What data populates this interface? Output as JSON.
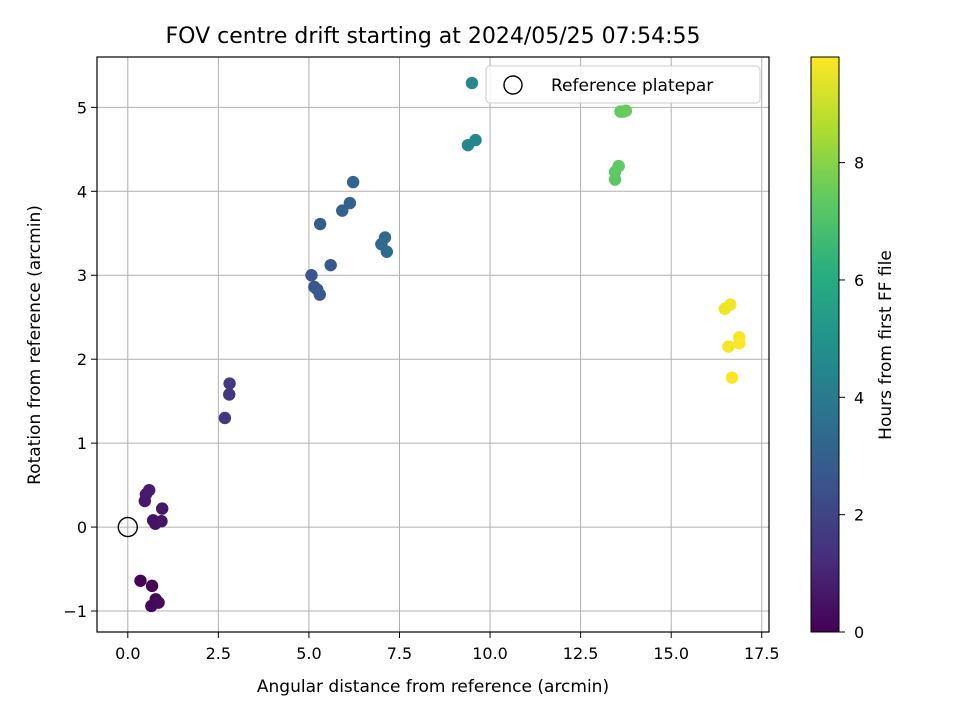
{
  "chart_data": {
    "type": "scatter",
    "title": "FOV centre drift starting at 2024/05/25 07:54:55",
    "xlabel": "Angular distance from reference (arcmin)",
    "ylabel": "Rotation from reference (arcmin)",
    "xlim": [
      -0.85,
      17.7
    ],
    "ylim": [
      -1.25,
      5.6
    ],
    "xticks": [
      0.0,
      2.5,
      5.0,
      7.5,
      10.0,
      12.5,
      15.0,
      17.5
    ],
    "xtick_labels": [
      "0.0",
      "2.5",
      "5.0",
      "7.5",
      "10.0",
      "12.5",
      "15.0",
      "17.5"
    ],
    "yticks": [
      -1,
      0,
      1,
      2,
      3,
      4,
      5
    ],
    "ytick_labels": [
      "−1",
      "0",
      "1",
      "2",
      "3",
      "4",
      "5"
    ],
    "grid": true,
    "colorbar": {
      "label": "Hours from first FF file",
      "colormap": "viridis",
      "range": [
        0,
        9.8
      ],
      "ticks": [
        0,
        2,
        4,
        6,
        8
      ],
      "tick_labels": [
        "0",
        "2",
        "4",
        "6",
        "8"
      ]
    },
    "reference": {
      "label": "Reference platepar",
      "x": 0.0,
      "y": 0.0
    },
    "legend": {
      "position": "top-right",
      "entries": [
        "Reference platepar"
      ]
    },
    "points": [
      {
        "x": 0.35,
        "y": -0.64,
        "c": 0.05
      },
      {
        "x": 0.67,
        "y": -0.7,
        "c": 0.1
      },
      {
        "x": 0.77,
        "y": -0.86,
        "c": 0.15
      },
      {
        "x": 0.65,
        "y": -0.94,
        "c": 0.2
      },
      {
        "x": 0.85,
        "y": -0.9,
        "c": 0.25
      },
      {
        "x": 0.7,
        "y": 0.08,
        "c": 0.45
      },
      {
        "x": 0.76,
        "y": 0.04,
        "c": 0.5
      },
      {
        "x": 0.93,
        "y": 0.07,
        "c": 0.55
      },
      {
        "x": 0.95,
        "y": 0.22,
        "c": 0.6
      },
      {
        "x": 0.47,
        "y": 0.31,
        "c": 0.65
      },
      {
        "x": 0.5,
        "y": 0.39,
        "c": 0.7
      },
      {
        "x": 0.59,
        "y": 0.44,
        "c": 0.75
      },
      {
        "x": 2.68,
        "y": 1.3,
        "c": 1.55
      },
      {
        "x": 2.8,
        "y": 1.58,
        "c": 1.6
      },
      {
        "x": 2.81,
        "y": 1.71,
        "c": 1.65
      },
      {
        "x": 5.07,
        "y": 3.0,
        "c": 2.55
      },
      {
        "x": 5.15,
        "y": 2.86,
        "c": 2.6
      },
      {
        "x": 5.23,
        "y": 2.83,
        "c": 2.65
      },
      {
        "x": 5.3,
        "y": 2.77,
        "c": 2.7
      },
      {
        "x": 5.6,
        "y": 3.12,
        "c": 2.75
      },
      {
        "x": 5.31,
        "y": 3.61,
        "c": 2.85
      },
      {
        "x": 5.92,
        "y": 3.77,
        "c": 3.0
      },
      {
        "x": 6.13,
        "y": 3.86,
        "c": 3.1
      },
      {
        "x": 6.22,
        "y": 4.11,
        "c": 3.15
      },
      {
        "x": 7.0,
        "y": 3.37,
        "c": 3.3
      },
      {
        "x": 7.1,
        "y": 3.45,
        "c": 3.35
      },
      {
        "x": 7.15,
        "y": 3.28,
        "c": 3.4
      },
      {
        "x": 9.39,
        "y": 4.55,
        "c": 4.45
      },
      {
        "x": 9.6,
        "y": 4.61,
        "c": 4.5
      },
      {
        "x": 9.5,
        "y": 5.29,
        "c": 4.55
      },
      {
        "x": 13.45,
        "y": 4.14,
        "c": 7.25
      },
      {
        "x": 13.45,
        "y": 4.23,
        "c": 7.3
      },
      {
        "x": 13.55,
        "y": 4.3,
        "c": 7.35
      },
      {
        "x": 13.6,
        "y": 4.95,
        "c": 7.4
      },
      {
        "x": 13.68,
        "y": 4.95,
        "c": 7.45
      },
      {
        "x": 13.75,
        "y": 4.96,
        "c": 7.5
      },
      {
        "x": 16.48,
        "y": 2.6,
        "c": 9.55
      },
      {
        "x": 16.63,
        "y": 2.65,
        "c": 9.6
      },
      {
        "x": 16.58,
        "y": 2.15,
        "c": 9.65
      },
      {
        "x": 16.88,
        "y": 2.26,
        "c": 9.7
      },
      {
        "x": 16.88,
        "y": 2.19,
        "c": 9.75
      },
      {
        "x": 16.68,
        "y": 1.78,
        "c": 9.8
      }
    ]
  }
}
